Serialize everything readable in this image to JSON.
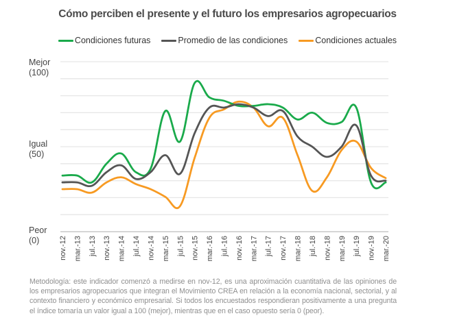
{
  "colors": {
    "futuras": "#1aaa4b",
    "promedio": "#555555",
    "actuales": "#f79a22",
    "grid": "#e6e6e6",
    "axis": "#c8c8c8"
  },
  "legend": {
    "futuras": "Condiciones futuras",
    "promedio": "Promedio de las condiciones",
    "actuales": "Condiciones actuales"
  },
  "y_labels": {
    "top_word": "Mejor",
    "top_value": "(100)",
    "mid_word": "Igual",
    "mid_value": "(50)",
    "bottom_word": "Peor",
    "bottom_value": "(0)"
  },
  "note": "Metodología: este indicador comenzó a medirse en nov-12, es una aproximación cuantitativa de las opiniones de los empresarios agropecuarios que integran el Movimiento CREA en relación a la economía nacional, sectorial, y al contexto financiero y económico empresarial. Si todos los encuestados respondieran positivamente a una pregunta el índice tomaría un valor igual a 100 (mejor), mientras que en el caso opuesto sería 0 (peor).",
  "chart_data": {
    "type": "line",
    "title": "Cómo perciben el presente y el futuro los empresarios agropecuarios",
    "xlabel": "",
    "ylabel": "",
    "ylim": [
      0,
      100
    ],
    "grid": true,
    "gridline_step": 10,
    "legend_position": "top",
    "categories": [
      "nov.-12",
      "mar.-13",
      "jul.-13",
      "nov.-13",
      "mar.-14",
      "jul.-14",
      "nov.-14",
      "mar.-15",
      "jul.-15",
      "nov.-15",
      "mar.-16",
      "jul.-16",
      "nov.-16",
      "mar.-17",
      "jul.-17",
      "nov.-17",
      "mar.-18",
      "jul.-18",
      "nov.-18",
      "mar.-19",
      "jul.-19",
      "nov.-19",
      "mar.-20"
    ],
    "series": [
      {
        "key": "futuras",
        "name": "Condiciones futuras",
        "values": [
          33,
          33,
          29,
          40,
          46,
          35,
          37,
          71,
          53,
          87.5,
          79,
          77,
          74,
          74,
          75,
          73,
          66,
          70,
          64,
          64.5,
          73,
          29,
          29
        ]
      },
      {
        "key": "promedio",
        "name": "Promedio de las condiciones",
        "values": [
          29,
          29,
          27,
          35,
          39,
          31,
          35,
          45,
          34,
          58,
          73,
          73,
          75,
          73,
          68,
          71,
          56,
          50,
          44,
          50,
          62.5,
          33,
          30
        ]
      },
      {
        "key": "actuales",
        "name": "Condiciones actuales",
        "values": [
          25,
          25,
          23,
          29,
          32,
          28,
          25,
          20.5,
          15,
          43.5,
          67,
          72,
          76.5,
          73,
          62,
          67,
          45,
          24,
          32,
          48,
          53,
          37.5,
          31.5
        ]
      }
    ]
  }
}
